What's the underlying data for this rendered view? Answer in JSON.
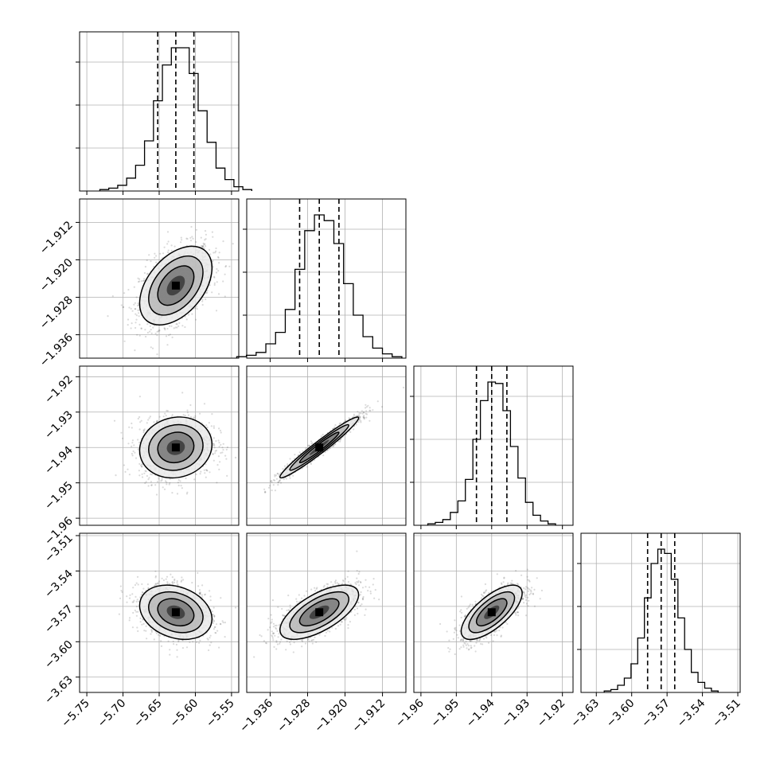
{
  "chart_data": {
    "type": "corner",
    "grid": true,
    "n_params": 4,
    "params": [
      {
        "range": [
          -5.76,
          -5.54
        ],
        "ticks": [
          -5.75,
          -5.7,
          -5.65,
          -5.6,
          -5.55
        ],
        "tick_labels": [
          "−5.75",
          "−5.70",
          "−5.65",
          "−5.60",
          "−5.55"
        ],
        "quantiles": [
          -5.652,
          -5.627,
          -5.602
        ],
        "median": -5.627,
        "sigma": 0.025
      },
      {
        "range": [
          -1.941,
          -1.907
        ],
        "ticks": [
          -1.936,
          -1.928,
          -1.92,
          -1.912
        ],
        "tick_labels": [
          "−1.936",
          "−1.928",
          "−1.920",
          "−1.912"
        ],
        "quantiles": [
          -1.9297,
          -1.9255,
          -1.9213
        ],
        "median": -1.9255,
        "sigma": 0.0042
      },
      {
        "range": [
          -1.962,
          -1.917
        ],
        "ticks": [
          -1.96,
          -1.95,
          -1.94,
          -1.93,
          -1.92
        ],
        "tick_labels": [
          "−1.96",
          "−1.95",
          "−1.94",
          "−1.93",
          "−1.92"
        ],
        "quantiles": [
          -1.9443,
          -1.94,
          -1.9357
        ],
        "median": -1.94,
        "sigma": 0.0043
      },
      {
        "range": [
          -3.643,
          -3.508
        ],
        "ticks": [
          -3.63,
          -3.6,
          -3.57,
          -3.54,
          -3.51
        ],
        "tick_labels": [
          "−3.63",
          "−3.60",
          "−3.57",
          "−3.54",
          "−3.51"
        ],
        "quantiles": [
          -3.5865,
          -3.575,
          -3.5635
        ],
        "median": -3.575,
        "sigma": 0.0115
      }
    ],
    "correlations": [
      {
        "row": 1,
        "col": 0,
        "rho": 0.45
      },
      {
        "row": 2,
        "col": 0,
        "rho": 0.1
      },
      {
        "row": 2,
        "col": 1,
        "rho": 0.97
      },
      {
        "row": 3,
        "col": 0,
        "rho": -0.25
      },
      {
        "row": 3,
        "col": 1,
        "rho": 0.65
      },
      {
        "row": 3,
        "col": 2,
        "rho": 0.7
      }
    ],
    "histograms": [
      {
        "param": 0,
        "counts": [
          1,
          2,
          4,
          9,
          18,
          35,
          63,
          88,
          100,
          100,
          82,
          56,
          34,
          16,
          8,
          3,
          1
        ]
      },
      {
        "param": 1,
        "counts": [
          1,
          2,
          4,
          10,
          18,
          34,
          62,
          89,
          100,
          96,
          80,
          52,
          30,
          15,
          7,
          3,
          1
        ]
      },
      {
        "param": 2,
        "counts": [
          1,
          2,
          4,
          9,
          17,
          32,
          60,
          87,
          100,
          99,
          80,
          55,
          33,
          16,
          7,
          3,
          1
        ]
      },
      {
        "param": 3,
        "counts": [
          1,
          2,
          5,
          10,
          20,
          38,
          66,
          90,
          100,
          97,
          79,
          52,
          30,
          14,
          7,
          3,
          1
        ]
      }
    ],
    "colors": {
      "line": "#000000",
      "points": "#555555",
      "grid": "#b0b0b0"
    }
  }
}
